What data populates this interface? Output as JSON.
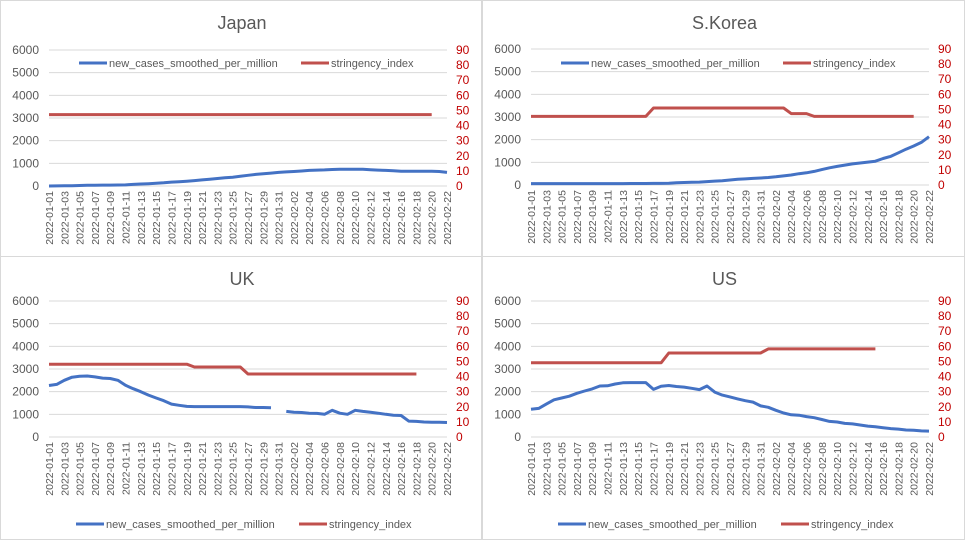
{
  "colors": {
    "cases": "#4472c4",
    "stringency": "#c0504d",
    "right_axis": "#c00000",
    "grid": "#d9d9d9"
  },
  "chart_data": [
    {
      "type": "line",
      "title": "Japan",
      "legend": "top",
      "x_start": "2022-01-01",
      "x_end": "2022-02-22",
      "ylim": [
        0,
        6000
      ],
      "y2lim": [
        0,
        90
      ],
      "series": [
        {
          "name": "new_cases_smoothed_per_million",
          "axis": "left",
          "values": [
            0,
            5,
            10,
            15,
            20,
            30,
            35,
            40,
            40,
            45,
            50,
            70,
            90,
            100,
            120,
            140,
            170,
            190,
            210,
            240,
            270,
            300,
            330,
            360,
            390,
            430,
            470,
            510,
            540,
            570,
            600,
            620,
            640,
            660,
            690,
            700,
            710,
            730,
            740,
            740,
            740,
            740,
            720,
            700,
            690,
            670,
            650,
            650,
            650,
            650,
            650,
            640,
            600
          ]
        },
        {
          "name": "stringency_index",
          "axis": "right",
          "values": [
            47.22,
            47.22,
            47.22,
            47.22,
            47.22,
            47.22,
            47.22,
            47.22,
            47.22,
            47.22,
            47.22,
            47.22,
            47.22,
            47.22,
            47.22,
            47.22,
            47.22,
            47.22,
            47.22,
            47.22,
            47.22,
            47.22,
            47.22,
            47.22,
            47.22,
            47.22,
            47.22,
            47.22,
            47.22,
            47.22,
            47.22,
            47.22,
            47.22,
            47.22,
            47.22,
            47.22,
            47.22,
            47.22,
            47.22,
            47.22,
            47.22,
            47.22,
            47.22,
            47.22,
            47.22,
            47.22,
            47.22,
            47.22,
            47.22,
            47.22,
            47.22,
            null,
            null
          ]
        }
      ]
    },
    {
      "type": "line",
      "title": "S.Korea",
      "legend": "top",
      "x_start": "2022-01-01",
      "x_end": "2022-02-22",
      "ylim": [
        0,
        6000
      ],
      "y2lim": [
        0,
        90
      ],
      "series": [
        {
          "name": "new_cases_smoothed_per_million",
          "axis": "left",
          "values": [
            60,
            60,
            60,
            60,
            60,
            60,
            60,
            60,
            60,
            60,
            60,
            60,
            60,
            65,
            65,
            65,
            70,
            70,
            75,
            100,
            110,
            120,
            130,
            150,
            170,
            190,
            220,
            250,
            270,
            290,
            310,
            330,
            360,
            400,
            440,
            500,
            540,
            600,
            680,
            760,
            820,
            880,
            930,
            970,
            1010,
            1050,
            1170,
            1260,
            1420,
            1580,
            1720,
            1880,
            2130
          ]
        },
        {
          "name": "stringency_index",
          "axis": "right",
          "values": [
            45.37,
            45.37,
            45.37,
            45.37,
            45.37,
            45.37,
            45.37,
            45.37,
            45.37,
            45.37,
            45.37,
            45.37,
            45.37,
            45.37,
            45.37,
            45.37,
            50.93,
            50.93,
            50.93,
            50.93,
            50.93,
            50.93,
            50.93,
            50.93,
            50.93,
            50.93,
            50.93,
            50.93,
            50.93,
            50.93,
            50.93,
            50.93,
            50.93,
            50.93,
            47.22,
            47.22,
            47.22,
            45.37,
            45.37,
            45.37,
            45.37,
            45.37,
            45.37,
            45.37,
            45.37,
            45.37,
            45.37,
            45.37,
            45.37,
            45.37,
            45.37,
            null,
            null
          ]
        }
      ]
    },
    {
      "type": "line",
      "title": "UK",
      "legend": "bottom",
      "x_start": "2022-01-01",
      "x_end": "2022-02-22",
      "ylim": [
        0,
        6000
      ],
      "y2lim": [
        0,
        90
      ],
      "series": [
        {
          "name": "new_cases_smoothed_per_million",
          "axis": "left",
          "values": [
            2270,
            2320,
            2500,
            2640,
            2680,
            2690,
            2650,
            2600,
            2580,
            2500,
            2280,
            2130,
            2000,
            1850,
            1720,
            1600,
            1450,
            1400,
            1350,
            1340,
            1340,
            1340,
            1340,
            1340,
            1340,
            1340,
            1330,
            1300,
            1300,
            1290,
            null,
            1130,
            1090,
            1080,
            1050,
            1040,
            1000,
            1180,
            1050,
            1000,
            1180,
            1130,
            1090,
            1050,
            1000,
            960,
            950,
            700,
            690,
            660,
            650,
            650,
            640
          ]
        },
        {
          "name": "stringency_index",
          "axis": "right",
          "values": [
            48.15,
            48.15,
            48.15,
            48.15,
            48.15,
            48.15,
            48.15,
            48.15,
            48.15,
            48.15,
            48.15,
            48.15,
            48.15,
            48.15,
            48.15,
            48.15,
            48.15,
            48.15,
            48.15,
            46.3,
            46.3,
            46.3,
            46.3,
            46.3,
            46.3,
            46.3,
            41.67,
            41.67,
            41.67,
            41.67,
            41.67,
            41.67,
            41.67,
            41.67,
            41.67,
            41.67,
            41.67,
            41.67,
            41.67,
            41.67,
            41.67,
            41.67,
            41.67,
            41.67,
            41.67,
            41.67,
            41.67,
            41.67,
            41.67,
            null,
            null,
            null,
            null
          ]
        }
      ]
    },
    {
      "type": "line",
      "title": "US",
      "legend": "bottom",
      "x_start": "2022-01-01",
      "x_end": "2022-02-22",
      "ylim": [
        0,
        6000
      ],
      "y2lim": [
        0,
        90
      ],
      "series": [
        {
          "name": "new_cases_smoothed_per_million",
          "axis": "left",
          "values": [
            1220,
            1260,
            1450,
            1640,
            1720,
            1800,
            1930,
            2030,
            2120,
            2250,
            2260,
            2340,
            2390,
            2400,
            2400,
            2400,
            2100,
            2240,
            2270,
            2230,
            2200,
            2150,
            2090,
            2250,
            1980,
            1850,
            1770,
            1680,
            1600,
            1540,
            1370,
            1310,
            1180,
            1060,
            980,
            960,
            900,
            850,
            770,
            690,
            660,
            600,
            580,
            530,
            480,
            450,
            410,
            370,
            350,
            310,
            300,
            270,
            260
          ]
        },
        {
          "name": "stringency_index",
          "axis": "right",
          "values": [
            49.07,
            49.07,
            49.07,
            49.07,
            49.07,
            49.07,
            49.07,
            49.07,
            49.07,
            49.07,
            49.07,
            49.07,
            49.07,
            49.07,
            49.07,
            49.07,
            49.07,
            49.07,
            55.56,
            55.56,
            55.56,
            55.56,
            55.56,
            55.56,
            55.56,
            55.56,
            55.56,
            55.56,
            55.56,
            55.56,
            55.56,
            58.33,
            58.33,
            58.33,
            58.33,
            58.33,
            58.33,
            58.33,
            58.33,
            58.33,
            58.33,
            58.33,
            58.33,
            58.33,
            58.33,
            58.33,
            null,
            null,
            null,
            null,
            null,
            null,
            null
          ]
        }
      ]
    }
  ]
}
